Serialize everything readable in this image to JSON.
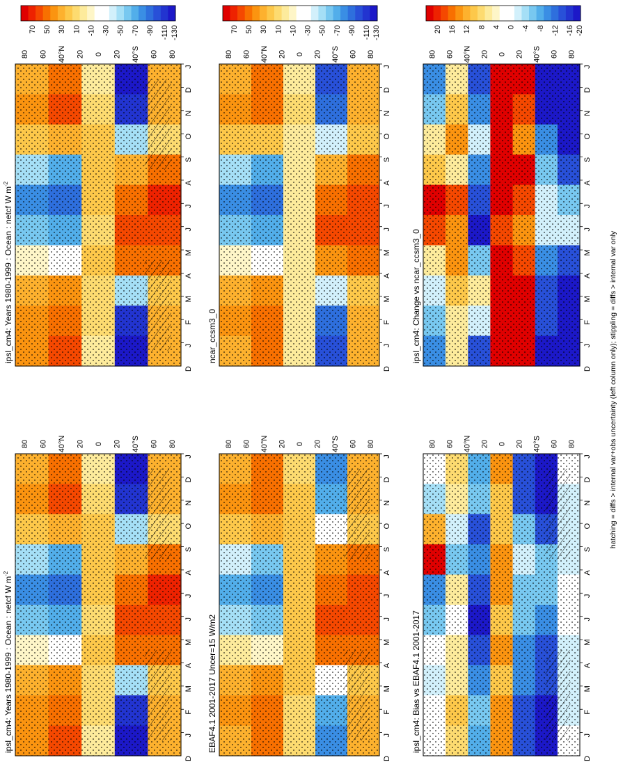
{
  "figure": {
    "footnote": "hatching = diffs > internal var+obs uncertainty (left column only); stippling = diffs > internal var only"
  },
  "colorbars": {
    "absolute": [
      "70",
      "50",
      "30",
      "10",
      "-10",
      "-30",
      "-50",
      "-70",
      "-90",
      "-110",
      "-130"
    ],
    "difference": [
      "20",
      "16",
      "12",
      "8",
      "4",
      "0",
      "-4",
      "-8",
      "-12",
      "-16",
      "-20"
    ],
    "warm_colors": [
      "#e00000",
      "#ee2200",
      "#f54800",
      "#f87000",
      "#fb9410",
      "#fdb12e",
      "#fdc84a",
      "#fddb70",
      "#fdeb9c",
      "#fef6c8",
      "#ffffff",
      "#ffffff",
      "#d2f0fb",
      "#a5dff6",
      "#78c8f0",
      "#52aeea",
      "#3a8ee4",
      "#2e6fdd",
      "#2850d8",
      "#2234d0",
      "#1c18c8"
    ]
  },
  "axis_ticks": {
    "months": [
      "J",
      "F",
      "M",
      "A",
      "M",
      "J",
      "J",
      "A",
      "S",
      "O",
      "N",
      "D",
      "J"
    ],
    "start_month": "D",
    "latitudes": [
      "80",
      "60",
      "40°N",
      "20",
      "0",
      "20",
      "40°S",
      "60",
      "80"
    ]
  },
  "chart_data": [
    {
      "type": "heatmap",
      "id": "left-top",
      "title": "ipsl_cm4: Years 1980-1999 : Ocean : netcf W m",
      "title_superscript": "-2",
      "x": "latitude (80N to 80S)",
      "y": "month (D to J)",
      "colorbar": "absolute",
      "zlim": [
        -130,
        70
      ],
      "grid": [
        [
          20,
          40,
          -10,
          -130,
          20
        ],
        [
          25,
          45,
          0,
          -120,
          15
        ],
        [
          10,
          15,
          5,
          -60,
          0
        ],
        [
          -60,
          -80,
          10,
          20,
          35
        ],
        [
          -90,
          -100,
          5,
          40,
          55
        ],
        [
          -70,
          -80,
          0,
          45,
          50
        ],
        [
          -20,
          -30,
          5,
          35,
          40
        ],
        [
          20,
          25,
          0,
          -60,
          10
        ],
        [
          30,
          40,
          -5,
          -120,
          15
        ],
        [
          25,
          45,
          -10,
          -130,
          20
        ]
      ]
    },
    {
      "type": "heatmap",
      "id": "right-top",
      "title": "ipsl_cm4: Years 1980-1999 : Ocean : netcf W m",
      "title_superscript": "-2",
      "x": "latitude (80N to 80S)",
      "y": "month (D to J)",
      "colorbar": "absolute",
      "zlim": [
        -130,
        70
      ],
      "grid": [
        [
          20,
          40,
          -10,
          -130,
          20
        ],
        [
          25,
          45,
          0,
          -120,
          15
        ],
        [
          10,
          15,
          5,
          -60,
          0
        ],
        [
          -60,
          -80,
          10,
          20,
          35
        ],
        [
          -90,
          -100,
          5,
          40,
          55
        ],
        [
          -70,
          -80,
          0,
          45,
          50
        ],
        [
          -20,
          -30,
          5,
          35,
          40
        ],
        [
          20,
          25,
          0,
          -60,
          10
        ],
        [
          30,
          40,
          -5,
          -120,
          15
        ],
        [
          25,
          45,
          -10,
          -130,
          20
        ]
      ]
    },
    {
      "type": "heatmap",
      "id": "left-middle",
      "title": "EBAF4.1 2001-2017 Uncer=15 W/m2",
      "x": "latitude (80N to 80S)",
      "y": "month (D to J)",
      "colorbar": "absolute",
      "zlim": [
        -130,
        70
      ],
      "grid": [
        [
          20,
          35,
          0,
          -90,
          20
        ],
        [
          25,
          40,
          5,
          -80,
          15
        ],
        [
          10,
          15,
          10,
          -40,
          5
        ],
        [
          -50,
          -70,
          10,
          25,
          35
        ],
        [
          -80,
          -90,
          10,
          40,
          50
        ],
        [
          -60,
          -70,
          5,
          45,
          45
        ],
        [
          -10,
          -20,
          10,
          35,
          35
        ],
        [
          20,
          25,
          5,
          -40,
          10
        ],
        [
          30,
          35,
          0,
          -80,
          15
        ],
        [
          20,
          35,
          0,
          -90,
          20
        ]
      ]
    },
    {
      "type": "heatmap",
      "id": "right-middle",
      "title": "ncar_ccsm3_0",
      "x": "latitude (80N to 80S)",
      "y": "month (D to J)",
      "colorbar": "absolute",
      "zlim": [
        -130,
        70
      ],
      "grid": [
        [
          20,
          35,
          -10,
          -110,
          20
        ],
        [
          25,
          40,
          0,
          -100,
          15
        ],
        [
          10,
          10,
          -10,
          -50,
          5
        ],
        [
          -60,
          -80,
          -10,
          20,
          35
        ],
        [
          -90,
          -100,
          -10,
          40,
          50
        ],
        [
          -70,
          -80,
          -10,
          45,
          45
        ],
        [
          -20,
          -30,
          -10,
          30,
          35
        ],
        [
          20,
          25,
          -10,
          -50,
          10
        ],
        [
          30,
          35,
          -10,
          -100,
          15
        ],
        [
          20,
          35,
          -10,
          -110,
          20
        ]
      ]
    },
    {
      "type": "heatmap",
      "id": "left-bottom",
      "title": "ipsl_cm4: Bias vs EBAF4.1 2001-2017",
      "x": "latitude (80N to 80S)",
      "y": "month (D to J)",
      "colorbar": "difference",
      "zlim": [
        -20,
        20
      ],
      "grid": [
        [
          0,
          5,
          -10,
          12,
          -16,
          -20,
          0
        ],
        [
          -5,
          4,
          -8,
          8,
          -16,
          -20,
          -4
        ],
        [
          10,
          -4,
          -16,
          8,
          -8,
          -16,
          -4
        ],
        [
          20,
          -8,
          -12,
          12,
          -4,
          -8,
          -4
        ],
        [
          -12,
          4,
          -16,
          12,
          -8,
          -8,
          0
        ],
        [
          -8,
          0,
          -20,
          8,
          -8,
          -12,
          0
        ],
        [
          0,
          4,
          -16,
          12,
          -12,
          -16,
          -4
        ],
        [
          -4,
          4,
          -12,
          8,
          -12,
          -16,
          -4
        ],
        [
          0,
          8,
          -8,
          12,
          -16,
          -20,
          -4
        ],
        [
          0,
          5,
          -10,
          12,
          -16,
          -20,
          0
        ]
      ]
    },
    {
      "type": "heatmap",
      "id": "right-bottom",
      "title": "ipsl_cm4: Change vs ncar_ccsm3_0",
      "x": "latitude (80N to 80S)",
      "y": "month (D to J)",
      "colorbar": "difference",
      "zlim": [
        -20,
        20
      ],
      "grid": [
        [
          -12,
          4,
          -16,
          20,
          20,
          -20,
          -20
        ],
        [
          -8,
          8,
          -12,
          20,
          16,
          -20,
          -20
        ],
        [
          4,
          12,
          -4,
          20,
          12,
          -12,
          -20
        ],
        [
          8,
          4,
          -12,
          20,
          20,
          -8,
          -16
        ],
        [
          20,
          16,
          -16,
          20,
          16,
          -4,
          -8
        ],
        [
          16,
          12,
          -20,
          16,
          12,
          -4,
          -4
        ],
        [
          4,
          12,
          -8,
          20,
          16,
          -12,
          -16
        ],
        [
          -4,
          8,
          4,
          20,
          20,
          -16,
          -20
        ],
        [
          -8,
          4,
          -4,
          20,
          20,
          -16,
          -20
        ],
        [
          -12,
          4,
          -16,
          20,
          20,
          -20,
          -20
        ]
      ]
    }
  ]
}
